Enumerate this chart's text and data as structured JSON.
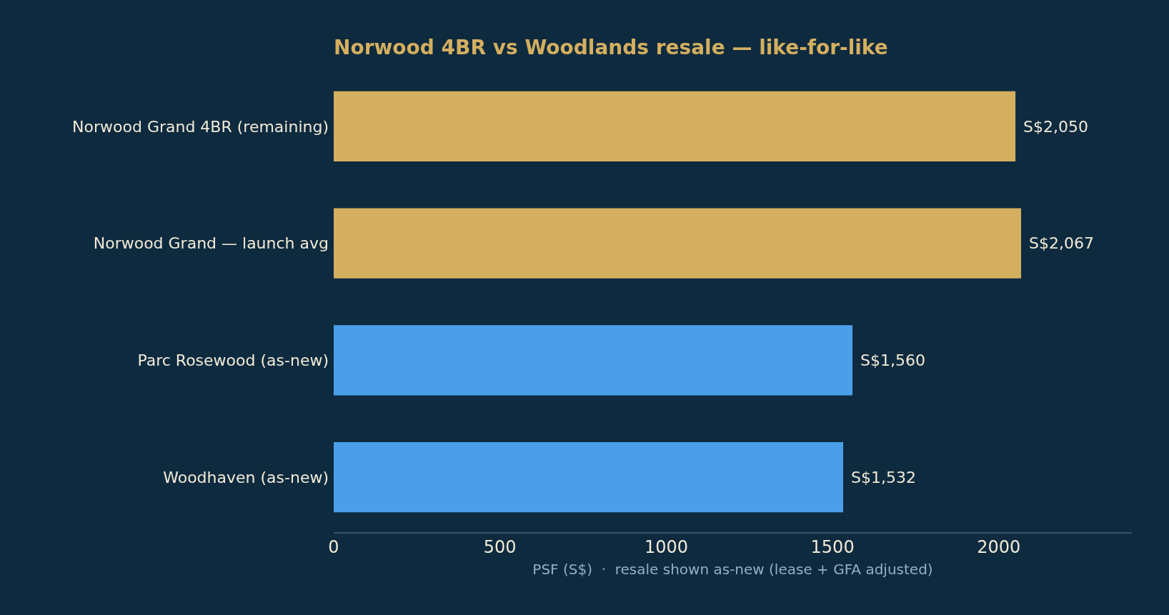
{
  "chart_data": {
    "type": "bar",
    "orientation": "horizontal",
    "title": "Norwood 4BR vs Woodlands resale — like-for-like",
    "xlabel": "PSF (S$)  ·  resale shown as-new (lease + GFA adjusted)",
    "categories": [
      "Norwood Grand 4BR (remaining)",
      "Norwood Grand — launch avg",
      "Parc Rosewood (as-new)",
      "Woodhaven (as-new)"
    ],
    "values": [
      2050,
      2067,
      1560,
      1532
    ],
    "colors": [
      "#d4af5f",
      "#d4af5f",
      "#4a9fe8",
      "#4a9fe8"
    ],
    "value_labels": [
      "S$2,050",
      "S$2,067",
      "S$1,560",
      "S$1,532"
    ],
    "xlim": [
      0,
      2400
    ],
    "xticks": [
      0,
      500,
      1000,
      1500,
      2000
    ],
    "grid": false
  }
}
